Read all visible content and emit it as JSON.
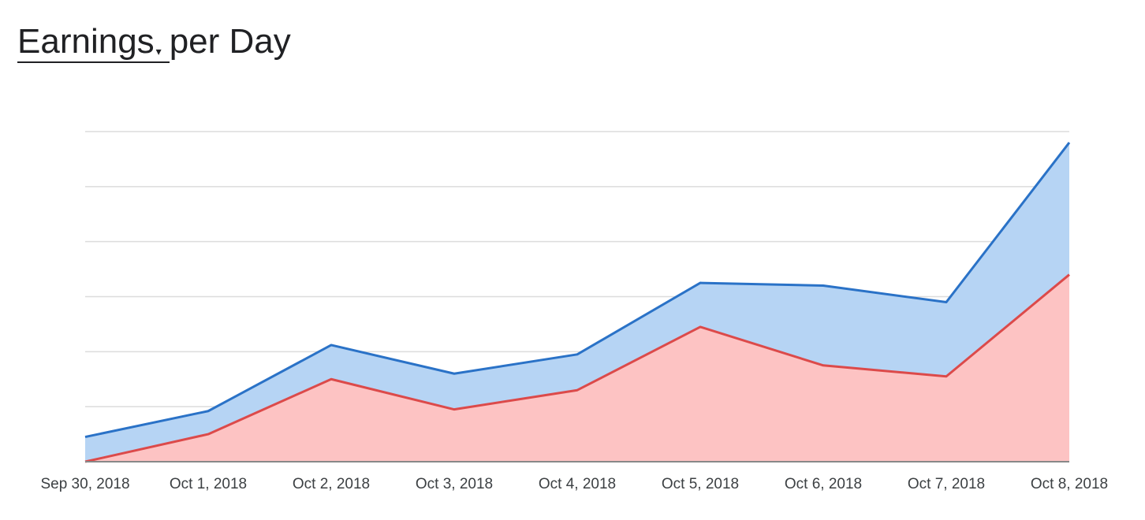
{
  "header": {
    "metric_label": "Earnings",
    "title_suffix": "per Day",
    "caret_icon": "caret-down-icon"
  },
  "colors": {
    "series_a_line": "#2a72c7",
    "series_a_fill": "#b6d4f4",
    "series_b_line": "#dc4a4a",
    "series_b_fill": "#fdc3c3",
    "grid": "#dcdcdc",
    "axis": "#888888"
  },
  "chart_data": {
    "type": "area",
    "stacked": true,
    "x": [
      "Sep 30, 2018",
      "Oct 1, 2018",
      "Oct 2, 2018",
      "Oct 3, 2018",
      "Oct 4, 2018",
      "Oct 5, 2018",
      "Oct 6, 2018",
      "Oct 7, 2018",
      "Oct 8, 2018"
    ],
    "series": [
      {
        "values": [
          0,
          0.5,
          1.5,
          0.95,
          1.3,
          2.45,
          1.75,
          1.55,
          3.4
        ]
      },
      {
        "values": [
          0.45,
          0.42,
          0.62,
          0.65,
          0.65,
          0.8,
          1.45,
          1.35,
          2.4
        ]
      }
    ],
    "ylim": [
      0,
      6
    ],
    "grid": true,
    "y_tick_labels_visible": false,
    "legend": "none",
    "title": "Earnings per Day",
    "xlabel": "",
    "ylabel": ""
  }
}
